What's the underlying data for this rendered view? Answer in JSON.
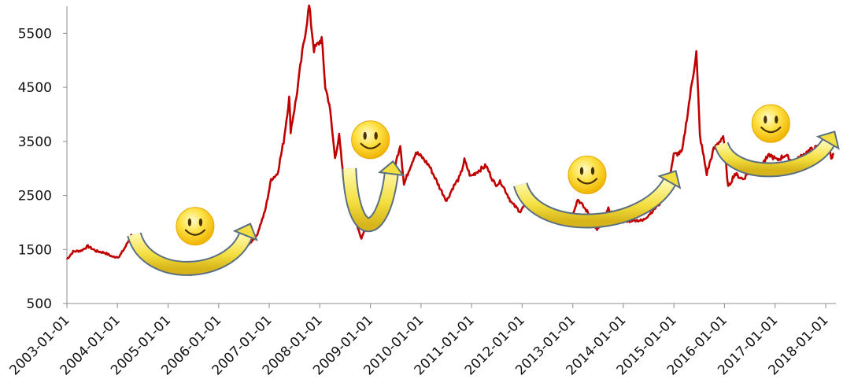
{
  "chart_data": {
    "type": "line",
    "title": "",
    "xlabel": "",
    "ylabel": "",
    "ylim": [
      500,
      6000
    ],
    "xlim": [
      "2003-01-01",
      "2018-03-01"
    ],
    "y_ticks": [
      500,
      1500,
      2500,
      3500,
      4500,
      5500
    ],
    "x_ticks": [
      "2003-01-01",
      "2004-01-01",
      "2005-01-01",
      "2006-01-01",
      "2007-01-01",
      "2008-01-01",
      "2009-01-01",
      "2010-01-01",
      "2011-01-01",
      "2012-01-01",
      "2013-01-01",
      "2014-01-01",
      "2015-01-01",
      "2016-01-01",
      "2017-01-01",
      "2018-01-01"
    ],
    "grid": false,
    "legend": "none",
    "series": [
      {
        "color": "#c00000",
        "points": [
          [
            "2003-01-01",
            1320
          ],
          [
            "2003-02-15",
            1460
          ],
          [
            "2003-04-15",
            1480
          ],
          [
            "2003-06-01",
            1560
          ],
          [
            "2003-08-01",
            1470
          ],
          [
            "2003-10-01",
            1440
          ],
          [
            "2003-12-01",
            1360
          ],
          [
            "2004-01-15",
            1370
          ],
          [
            "2004-03-01",
            1560
          ],
          [
            "2004-04-10",
            1760
          ],
          [
            "2004-05-15",
            1720
          ],
          [
            "2004-06-15",
            1500
          ],
          [
            "2004-08-01",
            1450
          ],
          [
            "2004-09-15",
            1420
          ],
          [
            "2004-11-01",
            1360
          ],
          [
            "2005-01-01",
            1280
          ],
          [
            "2005-03-01",
            1230
          ],
          [
            "2005-05-01",
            1150
          ],
          [
            "2005-06-10",
            1030
          ],
          [
            "2005-08-01",
            1160
          ],
          [
            "2005-10-01",
            1100
          ],
          [
            "2005-12-01",
            1170
          ],
          [
            "2006-02-01",
            1300
          ],
          [
            "2006-04-01",
            1420
          ],
          [
            "2006-06-01",
            1650
          ],
          [
            "2006-08-01",
            1590
          ],
          [
            "2006-10-01",
            1750
          ],
          [
            "2006-12-01",
            2200
          ],
          [
            "2007-01-15",
            2800
          ],
          [
            "2007-03-01",
            2900
          ],
          [
            "2007-04-15",
            3500
          ],
          [
            "2007-05-25",
            4300
          ],
          [
            "2007-06-05",
            3700
          ],
          [
            "2007-07-15",
            4300
          ],
          [
            "2007-08-20",
            5000
          ],
          [
            "2007-10-16",
            6000
          ],
          [
            "2007-11-20",
            5200
          ],
          [
            "2007-12-20",
            5300
          ],
          [
            "2008-01-15",
            5400
          ],
          [
            "2008-02-10",
            4500
          ],
          [
            "2008-03-10",
            4200
          ],
          [
            "2008-04-20",
            3200
          ],
          [
            "2008-05-20",
            3600
          ],
          [
            "2008-06-20",
            2800
          ],
          [
            "2008-08-01",
            2800
          ],
          [
            "2008-09-20",
            2000
          ],
          [
            "2008-10-28",
            1700
          ],
          [
            "2008-12-10",
            2050
          ],
          [
            "2009-01-15",
            1950
          ],
          [
            "2009-03-01",
            2300
          ],
          [
            "2009-04-15",
            2500
          ],
          [
            "2009-06-15",
            2900
          ],
          [
            "2009-08-04",
            3450
          ],
          [
            "2009-08-31",
            2700
          ],
          [
            "2009-10-10",
            3000
          ],
          [
            "2009-11-25",
            3300
          ],
          [
            "2010-01-10",
            3200
          ],
          [
            "2010-03-01",
            3050
          ],
          [
            "2010-05-15",
            2650
          ],
          [
            "2010-07-05",
            2400
          ],
          [
            "2010-08-20",
            2650
          ],
          [
            "2010-10-10",
            2850
          ],
          [
            "2010-11-10",
            3150
          ],
          [
            "2010-12-25",
            2850
          ],
          [
            "2011-02-15",
            2950
          ],
          [
            "2011-04-15",
            3050
          ],
          [
            "2011-06-20",
            2700
          ],
          [
            "2011-08-01",
            2750
          ],
          [
            "2011-10-20",
            2350
          ],
          [
            "2011-12-20",
            2200
          ],
          [
            "2012-02-20",
            2450
          ],
          [
            "2012-04-20",
            2400
          ],
          [
            "2012-06-20",
            2250
          ],
          [
            "2012-08-20",
            2100
          ],
          [
            "2012-10-20",
            2100
          ],
          [
            "2012-12-03",
            1960
          ],
          [
            "2013-02-06",
            2430
          ],
          [
            "2013-04-15",
            2200
          ],
          [
            "2013-06-25",
            1850
          ],
          [
            "2013-08-20",
            2100
          ],
          [
            "2013-09-15",
            2250
          ],
          [
            "2013-11-10",
            2100
          ],
          [
            "2014-01-15",
            2000
          ],
          [
            "2014-03-15",
            2050
          ],
          [
            "2014-05-20",
            2030
          ],
          [
            "2014-07-25",
            2200
          ],
          [
            "2014-09-20",
            2350
          ],
          [
            "2014-11-20",
            2700
          ],
          [
            "2014-12-31",
            3250
          ],
          [
            "2015-03-01",
            3300
          ],
          [
            "2015-04-20",
            4200
          ],
          [
            "2015-06-12",
            5150
          ],
          [
            "2015-07-08",
            3600
          ],
          [
            "2015-08-26",
            2900
          ],
          [
            "2015-10-15",
            3350
          ],
          [
            "2015-12-23",
            3600
          ],
          [
            "2016-01-28",
            2650
          ],
          [
            "2016-03-15",
            2900
          ],
          [
            "2016-05-15",
            2800
          ],
          [
            "2016-07-15",
            3000
          ],
          [
            "2016-09-15",
            3050
          ],
          [
            "2016-11-25",
            3250
          ],
          [
            "2017-01-15",
            3150
          ],
          [
            "2017-03-15",
            3250
          ],
          [
            "2017-05-15",
            3100
          ],
          [
            "2017-07-20",
            3250
          ],
          [
            "2017-09-20",
            3350
          ],
          [
            "2017-11-15",
            3400
          ],
          [
            "2018-01-24",
            3550
          ],
          [
            "2018-02-10",
            3150
          ],
          [
            "2018-03-01",
            3280
          ]
        ]
      }
    ],
    "annotations": [
      {
        "kind": "smiley",
        "x": "2005-07-15",
        "y": 1930
      },
      {
        "kind": "smiley",
        "x": "2009-01-01",
        "y": 3530
      },
      {
        "kind": "smiley",
        "x": "2013-04-15",
        "y": 2880
      },
      {
        "kind": "smiley",
        "x": "2016-12-01",
        "y": 3830
      },
      {
        "kind": "u-arrow",
        "from": [
          "2004-05-01",
          1780
        ],
        "bottom": [
          "2005-08-01",
          1080
        ],
        "to": [
          "2006-07-15",
          1760
        ]
      },
      {
        "kind": "u-arrow",
        "from": [
          "2008-08-01",
          3000
        ],
        "bottom": [
          "2008-12-15",
          1850
        ],
        "to": [
          "2009-06-01",
          2900
        ]
      },
      {
        "kind": "u-arrow",
        "from": [
          "2011-12-20",
          2700
        ],
        "bottom": [
          "2013-05-01",
          1950
        ],
        "to": [
          "2014-12-01",
          2750
        ]
      },
      {
        "kind": "u-arrow",
        "from": [
          "2015-12-10",
          3450
        ],
        "bottom": [
          "2016-12-01",
          2920
        ],
        "to": [
          "2018-01-20",
          3480
        ]
      }
    ]
  }
}
